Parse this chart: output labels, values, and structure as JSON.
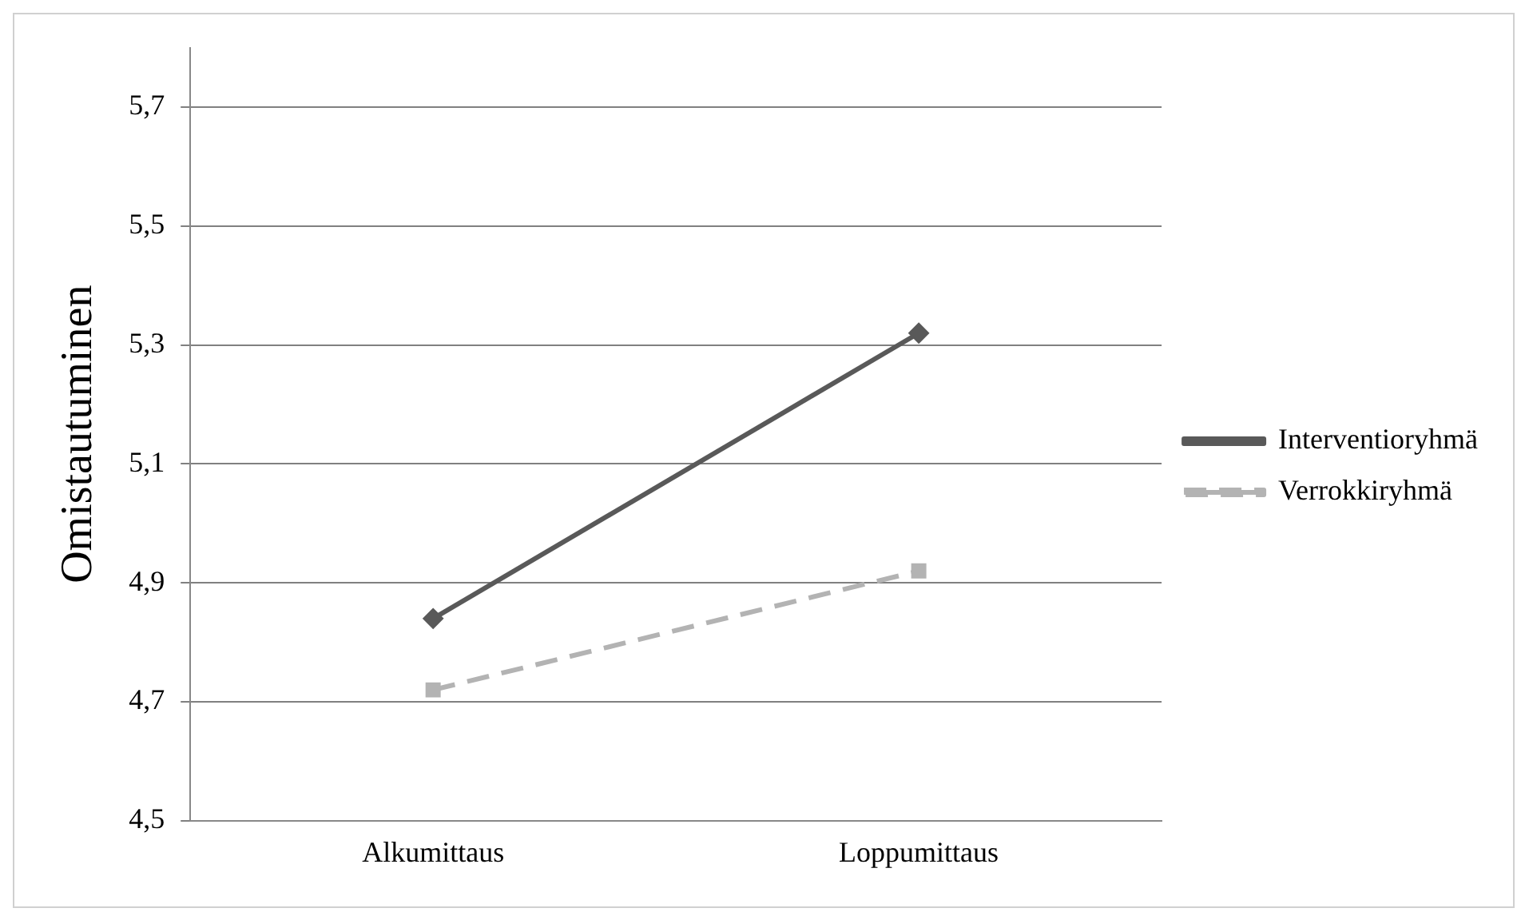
{
  "chart_data": {
    "type": "line",
    "ylabel": "Omistautuminen",
    "categories": [
      "Alkumittaus",
      "Loppumittaus"
    ],
    "series": [
      {
        "name": "Interventioryhmä",
        "color": "#595959",
        "values": [
          4.84,
          5.32
        ],
        "marker": "diamond",
        "line_style": "solid"
      },
      {
        "name": "Verrokkiryhmä",
        "color": "#b3b3b3",
        "values": [
          4.72,
          4.92
        ],
        "marker": "square",
        "line_style": "dashed"
      }
    ],
    "ylim": [
      4.5,
      5.8
    ],
    "yticks": [
      {
        "value": 4.5,
        "label": "4,5"
      },
      {
        "value": 4.7,
        "label": "4,7"
      },
      {
        "value": 4.9,
        "label": "4,9"
      },
      {
        "value": 5.1,
        "label": "5,1"
      },
      {
        "value": 5.3,
        "label": "5,3"
      },
      {
        "value": 5.5,
        "label": "5,5"
      },
      {
        "value": 5.7,
        "label": "5,7"
      }
    ],
    "grid": "y",
    "legend": "right"
  }
}
